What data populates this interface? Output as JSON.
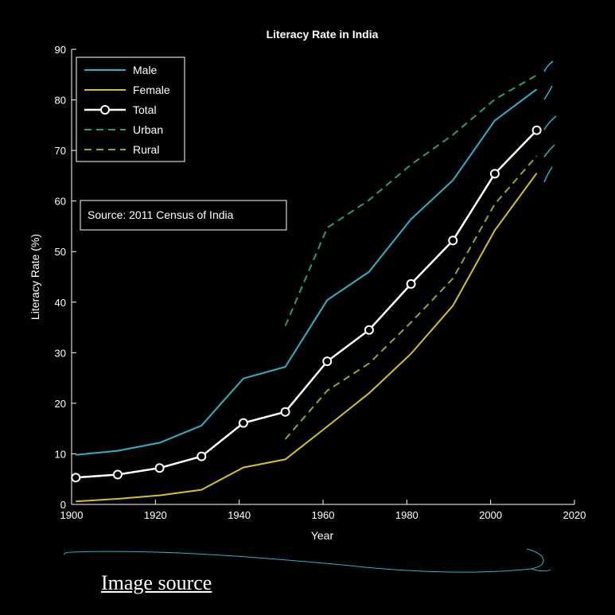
{
  "chart_data": {
    "type": "line",
    "title": "Literacy Rate in India",
    "xlabel": "Year",
    "ylabel": "Literacy Rate (%)",
    "xlim": [
      1900,
      2020
    ],
    "ylim": [
      0,
      90
    ],
    "xticks": [
      1900,
      1920,
      1940,
      1960,
      1980,
      2000,
      2020
    ],
    "yticks": [
      0,
      10,
      20,
      30,
      40,
      50,
      60,
      70,
      80,
      90
    ],
    "grid": false,
    "legend_position": "top-left",
    "annotation": "Source: 2011 Census of India",
    "series": [
      {
        "name": "Male",
        "color": "#2ab3c9",
        "style": "solid",
        "x": [
          1901,
          1911,
          1921,
          1931,
          1941,
          1951,
          1961,
          1971,
          1981,
          1991,
          2001,
          2011
        ],
        "y": [
          9.8,
          10.6,
          12.2,
          15.6,
          24.9,
          27.2,
          40.4,
          46.0,
          56.4,
          64.1,
          75.9,
          82.1
        ]
      },
      {
        "name": "Female",
        "color": "#d6c21c",
        "style": "solid",
        "x": [
          1901,
          1911,
          1921,
          1931,
          1941,
          1951,
          1961,
          1971,
          1981,
          1991,
          2001,
          2011
        ],
        "y": [
          0.6,
          1.1,
          1.8,
          2.9,
          7.3,
          8.9,
          15.4,
          22.0,
          29.8,
          39.3,
          54.2,
          65.5
        ]
      },
      {
        "name": "Total",
        "color": "#ffffff",
        "style": "solid-markers",
        "x": [
          1901,
          1911,
          1921,
          1931,
          1941,
          1951,
          1961,
          1971,
          1981,
          1991,
          2001,
          2011
        ],
        "y": [
          5.3,
          5.9,
          7.2,
          9.5,
          16.1,
          18.3,
          28.3,
          34.5,
          43.6,
          52.2,
          65.4,
          74.0
        ]
      },
      {
        "name": "Urban",
        "color": "#1f9e78",
        "style": "dashed",
        "x": [
          1951,
          1961,
          1971,
          1981,
          1991,
          2001,
          2011
        ],
        "y": [
          35.3,
          54.7,
          60.2,
          67.2,
          73.1,
          80.1,
          84.9
        ]
      },
      {
        "name": "Rural",
        "color": "#9aa51e",
        "style": "dashed",
        "x": [
          1951,
          1961,
          1971,
          1981,
          1991,
          2001,
          2011
        ],
        "y": [
          12.9,
          22.5,
          27.9,
          36.0,
          44.7,
          59.4,
          68.9
        ]
      }
    ]
  },
  "footer": {
    "link_text": "Image source"
  }
}
